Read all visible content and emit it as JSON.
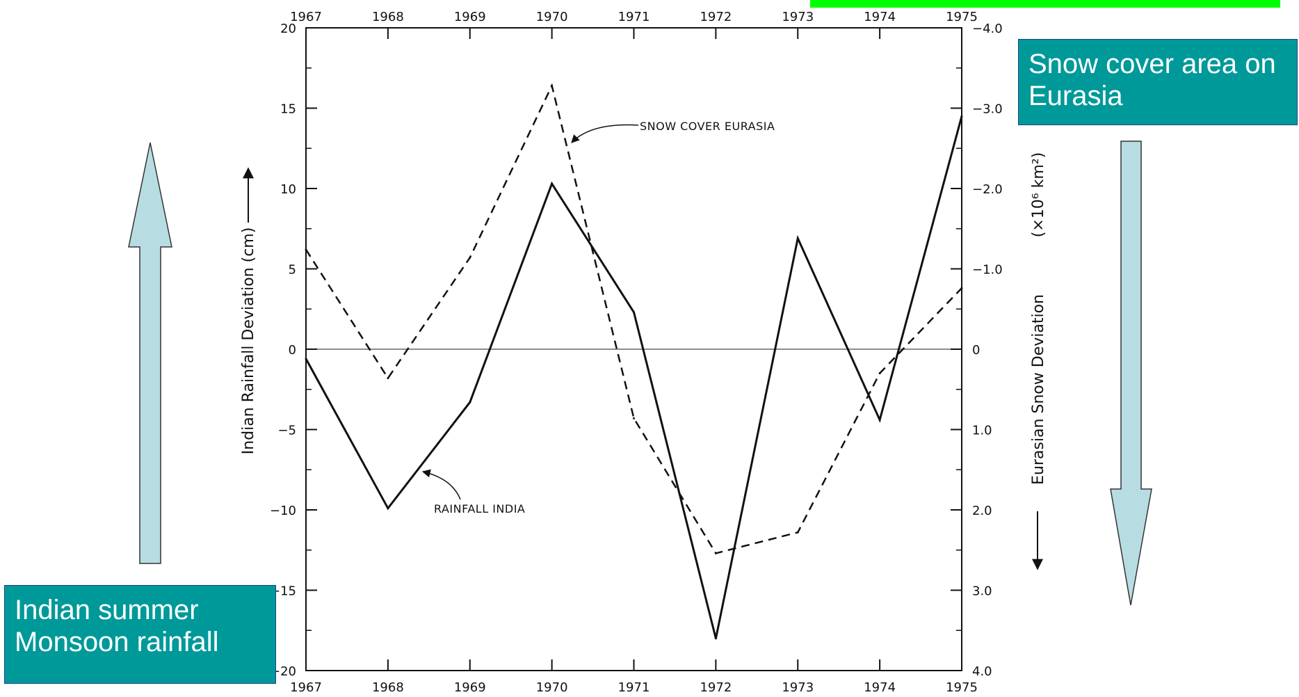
{
  "chart_data": {
    "type": "line",
    "x": [
      1967,
      1968,
      1969,
      1970,
      1971,
      1972,
      1973,
      1974,
      1975
    ],
    "x_ticks": [
      "1967",
      "1968",
      "1969",
      "1970",
      "1971",
      "1972",
      "1973",
      "1974",
      "1975"
    ],
    "xlim": [
      1967,
      1975
    ],
    "left_axis": {
      "label": "Indian Rainfall Deviation  (cm)",
      "ylim": [
        -20,
        20
      ],
      "ticks": [
        20,
        15,
        10,
        5,
        0,
        -5,
        -10,
        -15,
        -20
      ],
      "tick_labels": [
        "20",
        "15",
        "10",
        "5",
        "0",
        "−5",
        "−10",
        "−15",
        "−20"
      ]
    },
    "right_axis": {
      "label": "Eurasian Snow Deviation",
      "unit": "(×10⁶ km²)",
      "ylim": [
        4.0,
        -4.0
      ],
      "inverted": true,
      "ticks": [
        -4.0,
        -3.0,
        -2.0,
        -1.0,
        0,
        1.0,
        2.0,
        3.0,
        4.0
      ],
      "tick_labels": [
        "−4.0",
        "−3.0",
        "−2.0",
        "−1.0",
        "0",
        "1.0",
        "2.0",
        "3.0",
        "4.0"
      ]
    },
    "series": [
      {
        "name": "RAINFALL INDIA",
        "axis": "left",
        "style": "solid",
        "values": [
          -0.6,
          -9.9,
          -3.3,
          10.3,
          2.3,
          -18.0,
          6.9,
          -4.4,
          14.5
        ]
      },
      {
        "name": "SNOW COVER EURASIA",
        "axis": "right",
        "style": "dashed",
        "values": [
          -1.24,
          0.36,
          -1.14,
          -3.28,
          0.86,
          2.54,
          2.28,
          0.3,
          -0.76
        ]
      }
    ],
    "grid": false,
    "zero_line": true
  },
  "callouts": {
    "snow": "Snow cover area on Eurasia",
    "rain": "Indian summer Monsoon rainfall"
  },
  "colors": {
    "callout_fill": "#009999",
    "arrow_fill": "#b7dde3",
    "green_bar": "#00ff00"
  }
}
